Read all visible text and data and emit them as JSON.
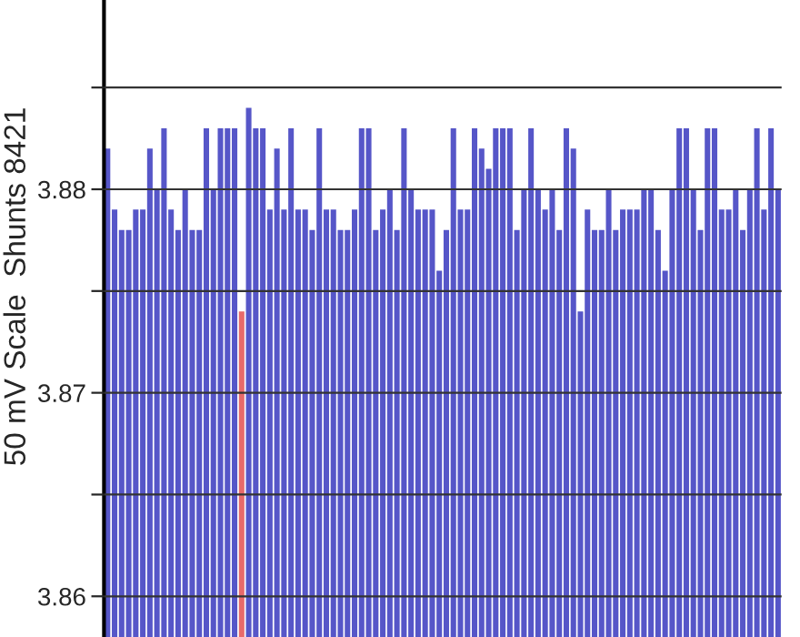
{
  "chart_data": {
    "type": "bar",
    "ylabel": "50 mV Scale  Shunts 8421",
    "categories": [
      null,
      null,
      null,
      null,
      null,
      null,
      null,
      null,
      null,
      null,
      null,
      null,
      null,
      null,
      null,
      null,
      null,
      null,
      null,
      null,
      null,
      null,
      null,
      null,
      null,
      null,
      null,
      null,
      null,
      null,
      null,
      null,
      null,
      null,
      null,
      null,
      null,
      null,
      null,
      null,
      null,
      null,
      null,
      null,
      null,
      null,
      null,
      null,
      null,
      null,
      null,
      null,
      null,
      null,
      null,
      null,
      null,
      null,
      null,
      null,
      null,
      null,
      null,
      null,
      null,
      null,
      null,
      null,
      null,
      null,
      null,
      null,
      null,
      null,
      null,
      null,
      null,
      null,
      null,
      null,
      null,
      null,
      null,
      null,
      null,
      null,
      null,
      null,
      null,
      null,
      null,
      null,
      null,
      null,
      null,
      null
    ],
    "values": [
      3.882,
      3.879,
      3.878,
      3.878,
      3.879,
      3.879,
      3.882,
      3.88,
      3.883,
      3.879,
      3.878,
      3.88,
      3.878,
      3.878,
      3.883,
      3.88,
      3.883,
      3.883,
      3.883,
      3.874,
      3.884,
      3.883,
      3.883,
      3.879,
      3.882,
      3.879,
      3.883,
      3.879,
      3.879,
      3.878,
      3.883,
      3.879,
      3.879,
      3.878,
      3.878,
      3.879,
      3.883,
      3.883,
      3.878,
      3.879,
      3.88,
      3.878,
      3.883,
      3.88,
      3.879,
      3.879,
      3.879,
      3.876,
      3.878,
      3.883,
      3.879,
      3.879,
      3.883,
      3.882,
      3.881,
      3.883,
      3.883,
      3.883,
      3.878,
      3.88,
      3.883,
      3.88,
      3.879,
      3.88,
      3.878,
      3.883,
      3.882,
      3.874,
      3.879,
      3.878,
      3.878,
      3.88,
      3.878,
      3.879,
      3.879,
      3.879,
      3.88,
      3.88,
      3.878,
      3.876,
      3.88,
      3.883,
      3.883,
      3.88,
      3.878,
      3.883,
      3.883,
      3.879,
      3.879,
      3.88,
      3.878,
      3.88,
      3.883,
      3.879,
      3.883,
      3.88
    ],
    "colors": [
      "#5656c8",
      "#5656c8",
      "#5656c8",
      "#5656c8",
      "#5656c8",
      "#5656c8",
      "#5656c8",
      "#5656c8",
      "#5656c8",
      "#5656c8",
      "#5656c8",
      "#5656c8",
      "#5656c8",
      "#5656c8",
      "#5656c8",
      "#5656c8",
      "#5656c8",
      "#5656c8",
      "#5656c8",
      "#e86a6a",
      "#5656c8",
      "#5656c8",
      "#5656c8",
      "#5656c8",
      "#5656c8",
      "#5656c8",
      "#5656c8",
      "#5656c8",
      "#5656c8",
      "#5656c8",
      "#5656c8",
      "#5656c8",
      "#5656c8",
      "#5656c8",
      "#5656c8",
      "#5656c8",
      "#5656c8",
      "#5656c8",
      "#5656c8",
      "#5656c8",
      "#5656c8",
      "#5656c8",
      "#5656c8",
      "#5656c8",
      "#5656c8",
      "#5656c8",
      "#5656c8",
      "#5656c8",
      "#5656c8",
      "#5656c8",
      "#5656c8",
      "#5656c8",
      "#5656c8",
      "#5656c8",
      "#5656c8",
      "#5656c8",
      "#5656c8",
      "#5656c8",
      "#5656c8",
      "#5656c8",
      "#5656c8",
      "#5656c8",
      "#5656c8",
      "#5656c8",
      "#5656c8",
      "#5656c8",
      "#5656c8",
      "#5656c8",
      "#5656c8",
      "#5656c8",
      "#5656c8",
      "#5656c8",
      "#5656c8",
      "#5656c8",
      "#5656c8",
      "#5656c8",
      "#5656c8",
      "#5656c8",
      "#5656c8",
      "#5656c8",
      "#5656c8",
      "#5656c8",
      "#5656c8",
      "#5656c8",
      "#5656c8",
      "#5656c8",
      "#5656c8",
      "#5656c8",
      "#5656c8",
      "#5656c8",
      "#5656c8",
      "#5656c8",
      "#5656c8",
      "#5656c8",
      "#5656c8",
      "#5656c8"
    ],
    "ylim": [
      3.858,
      3.8893
    ],
    "yticks": [
      3.86,
      {
        "value": 3.865,
        "label": null
      },
      3.87,
      {
        "value": 3.875,
        "label": null
      },
      3.88,
      {
        "value": 3.885,
        "label": null
      }
    ],
    "grid": "y",
    "tick_labels": "y"
  }
}
